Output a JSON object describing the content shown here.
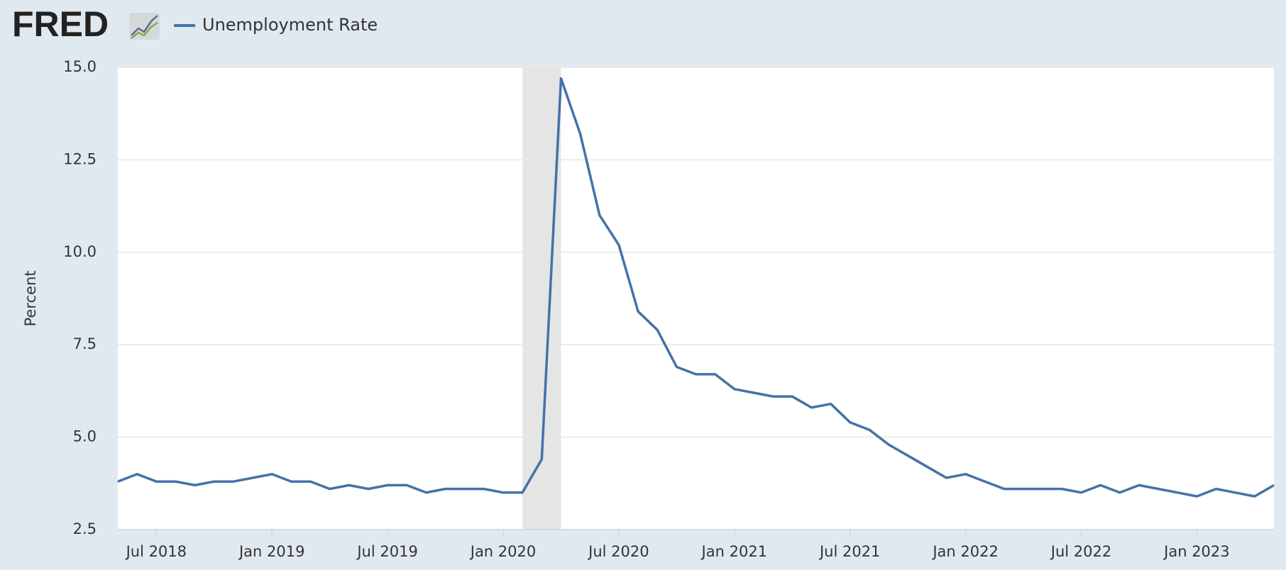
{
  "chart_data": {
    "type": "line",
    "logo": "FRED",
    "ylabel": "Percent",
    "x": [
      "2018-05",
      "2018-06",
      "2018-07",
      "2018-08",
      "2018-09",
      "2018-10",
      "2018-11",
      "2018-12",
      "2019-01",
      "2019-02",
      "2019-03",
      "2019-04",
      "2019-05",
      "2019-06",
      "2019-07",
      "2019-08",
      "2019-09",
      "2019-10",
      "2019-11",
      "2019-12",
      "2020-01",
      "2020-02",
      "2020-03",
      "2020-04",
      "2020-05",
      "2020-06",
      "2020-07",
      "2020-08",
      "2020-09",
      "2020-10",
      "2020-11",
      "2020-12",
      "2021-01",
      "2021-02",
      "2021-03",
      "2021-04",
      "2021-05",
      "2021-06",
      "2021-07",
      "2021-08",
      "2021-09",
      "2021-10",
      "2021-11",
      "2021-12",
      "2022-01",
      "2022-02",
      "2022-03",
      "2022-04",
      "2022-05",
      "2022-06",
      "2022-07",
      "2022-08",
      "2022-09",
      "2022-10",
      "2022-11",
      "2022-12",
      "2023-01",
      "2023-02",
      "2023-03",
      "2023-04",
      "2023-05"
    ],
    "series": [
      {
        "name": "Unemployment Rate",
        "color": "#4572a7",
        "values": [
          3.8,
          4.0,
          3.8,
          3.8,
          3.7,
          3.8,
          3.8,
          3.9,
          4.0,
          3.8,
          3.8,
          3.6,
          3.7,
          3.6,
          3.7,
          3.7,
          3.5,
          3.6,
          3.6,
          3.6,
          3.5,
          3.5,
          4.4,
          14.7,
          13.2,
          11.0,
          10.2,
          8.4,
          7.9,
          6.9,
          6.7,
          6.7,
          6.3,
          6.2,
          6.1,
          6.1,
          5.8,
          5.9,
          5.4,
          5.2,
          4.8,
          4.5,
          4.2,
          3.9,
          4.0,
          3.8,
          3.6,
          3.6,
          3.6,
          3.6,
          3.5,
          3.7,
          3.5,
          3.7,
          3.6,
          3.5,
          3.4,
          3.6,
          3.5,
          3.4,
          3.7
        ]
      }
    ],
    "xlim": [
      "2018-05",
      "2023-05"
    ],
    "xticks": [
      {
        "value": "2018-07",
        "label": "Jul 2018"
      },
      {
        "value": "2019-01",
        "label": "Jan 2019"
      },
      {
        "value": "2019-07",
        "label": "Jul 2019"
      },
      {
        "value": "2020-01",
        "label": "Jan 2020"
      },
      {
        "value": "2020-07",
        "label": "Jul 2020"
      },
      {
        "value": "2021-01",
        "label": "Jan 2021"
      },
      {
        "value": "2021-07",
        "label": "Jul 2021"
      },
      {
        "value": "2022-01",
        "label": "Jan 2022"
      },
      {
        "value": "2022-07",
        "label": "Jul 2022"
      },
      {
        "value": "2023-01",
        "label": "Jan 2023"
      }
    ],
    "ylim": [
      2.5,
      15
    ],
    "yticks": [
      {
        "value": 2.5,
        "label": "2.5"
      },
      {
        "value": 5,
        "label": "5.0"
      },
      {
        "value": 7.5,
        "label": "7.5"
      },
      {
        "value": 10,
        "label": "10.0"
      },
      {
        "value": 12.5,
        "label": "12.5"
      },
      {
        "value": 15,
        "label": "15.0"
      }
    ],
    "grid": true,
    "recession": [
      "2020-02",
      "2020-04"
    ]
  }
}
